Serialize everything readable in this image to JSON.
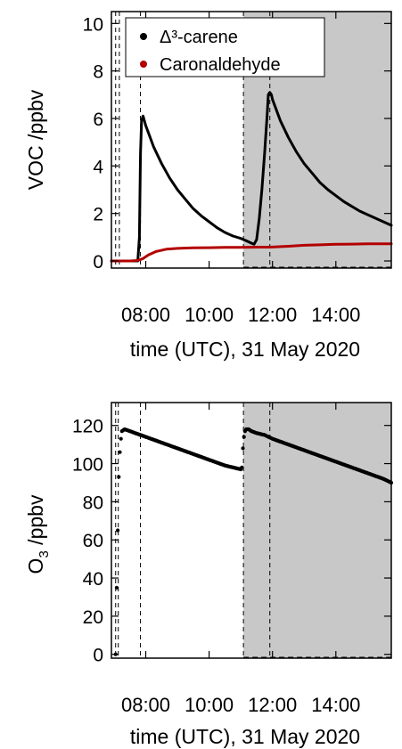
{
  "colors": {
    "shade": "#c8c8c8",
    "carene": "#000000",
    "caronaldehyde": "#b30000",
    "ozone": "#000000"
  },
  "chart_data": [
    {
      "type": "line",
      "title": "",
      "xlabel": "time (UTC), 31 May 2020",
      "ylabel": "VOC /ppbv",
      "xlim": [
        "06:55",
        "15:45"
      ],
      "ylim": [
        -0.3,
        10.5
      ],
      "xticks": [
        {
          "t": "08:00",
          "label": "08:00"
        },
        {
          "t": "10:00",
          "label": "10:00"
        },
        {
          "t": "12:00",
          "label": "12:00"
        },
        {
          "t": "14:00",
          "label": "14:00"
        }
      ],
      "yticks": [
        {
          "v": 0,
          "label": "0"
        },
        {
          "v": 2,
          "label": "2"
        },
        {
          "v": 4,
          "label": "4"
        },
        {
          "v": 6,
          "label": "6"
        },
        {
          "v": 8,
          "label": "8"
        },
        {
          "v": 10,
          "label": "10"
        }
      ],
      "shaded_region": [
        "11:05",
        "15:45"
      ],
      "vlines": [
        "07:03",
        "07:10",
        "07:50",
        "11:05",
        "11:55"
      ],
      "legend": {
        "position": "top-left",
        "entries": [
          "Δ³-carene",
          "Caronaldehyde"
        ]
      },
      "series": [
        {
          "name": "Δ³-carene",
          "color_key": "carene",
          "x": [
            "06:55",
            "07:45",
            "07:48",
            "07:50",
            "07:52",
            "07:55",
            "08:00",
            "08:15",
            "08:30",
            "08:45",
            "09:00",
            "09:15",
            "09:30",
            "09:45",
            "10:00",
            "10:15",
            "10:30",
            "10:45",
            "11:00",
            "11:10",
            "11:20",
            "11:25",
            "11:30",
            "11:35",
            "11:40",
            "11:45",
            "11:50",
            "11:52",
            "11:55",
            "11:58",
            "12:00",
            "12:15",
            "12:30",
            "12:45",
            "13:00",
            "13:15",
            "13:30",
            "13:45",
            "14:00",
            "14:15",
            "14:30",
            "14:45",
            "15:00",
            "15:15",
            "15:30",
            "15:45"
          ],
          "y": [
            0,
            0,
            1.0,
            4.5,
            5.9,
            6.1,
            5.7,
            4.8,
            4.1,
            3.5,
            3.0,
            2.6,
            2.2,
            1.9,
            1.65,
            1.4,
            1.2,
            1.05,
            0.95,
            0.85,
            0.75,
            0.7,
            0.9,
            1.8,
            3.0,
            4.5,
            6.2,
            7.0,
            7.1,
            7.0,
            6.8,
            5.9,
            5.2,
            4.6,
            4.1,
            3.7,
            3.3,
            3.0,
            2.75,
            2.5,
            2.3,
            2.1,
            1.95,
            1.8,
            1.65,
            1.5
          ]
        },
        {
          "name": "Caronaldehyde",
          "color_key": "caronaldehyde",
          "x": [
            "06:55",
            "07:30",
            "07:45",
            "07:55",
            "08:05",
            "08:20",
            "08:40",
            "09:00",
            "09:30",
            "10:00",
            "10:30",
            "11:00",
            "11:30",
            "11:55",
            "12:30",
            "13:00",
            "13:30",
            "14:00",
            "14:30",
            "15:00",
            "15:45"
          ],
          "y": [
            0,
            0,
            0.02,
            0.1,
            0.25,
            0.4,
            0.5,
            0.53,
            0.55,
            0.56,
            0.57,
            0.57,
            0.58,
            0.58,
            0.62,
            0.66,
            0.68,
            0.7,
            0.71,
            0.72,
            0.72
          ]
        }
      ]
    },
    {
      "type": "scatter",
      "title": "",
      "xlabel": "time (UTC), 31 May 2020",
      "ylabel": "O3 /ppbv",
      "xlim": [
        "06:55",
        "15:45"
      ],
      "ylim": [
        -2,
        132
      ],
      "xticks": [
        {
          "t": "08:00",
          "label": "08:00"
        },
        {
          "t": "10:00",
          "label": "10:00"
        },
        {
          "t": "12:00",
          "label": "12:00"
        },
        {
          "t": "14:00",
          "label": "14:00"
        }
      ],
      "yticks": [
        {
          "v": 0,
          "label": "0"
        },
        {
          "v": 20,
          "label": "20"
        },
        {
          "v": 40,
          "label": "40"
        },
        {
          "v": 60,
          "label": "60"
        },
        {
          "v": 80,
          "label": "80"
        },
        {
          "v": 100,
          "label": "100"
        },
        {
          "v": 120,
          "label": "120"
        }
      ],
      "shaded_region": [
        "11:05",
        "15:45"
      ],
      "vlines": [
        "07:03",
        "07:08",
        "07:50",
        "11:05",
        "11:55"
      ],
      "series": [
        {
          "name": "",
          "color_key": "ozone",
          "x": [
            "07:03",
            "07:05",
            "07:07",
            "07:09",
            "07:11",
            "07:13",
            "07:15",
            "07:20",
            "07:30",
            "07:40",
            "07:50",
            "08:00",
            "08:30",
            "09:00",
            "09:30",
            "10:00",
            "10:30",
            "11:00",
            "11:02",
            "11:04",
            "11:06",
            "11:08",
            "11:10",
            "11:15",
            "11:20",
            "11:30",
            "11:45",
            "12:00",
            "12:30",
            "13:00",
            "13:30",
            "14:00",
            "14:30",
            "15:00",
            "15:30",
            "15:45"
          ],
          "y": [
            0,
            35,
            65,
            93,
            106,
            113,
            117,
            118,
            117,
            116,
            115,
            114,
            111,
            108,
            105,
            102,
            99,
            97,
            98,
            108,
            114,
            117,
            118,
            118,
            117,
            116,
            115,
            113,
            110,
            107,
            104,
            101,
            98,
            95,
            92,
            90
          ]
        }
      ]
    }
  ]
}
